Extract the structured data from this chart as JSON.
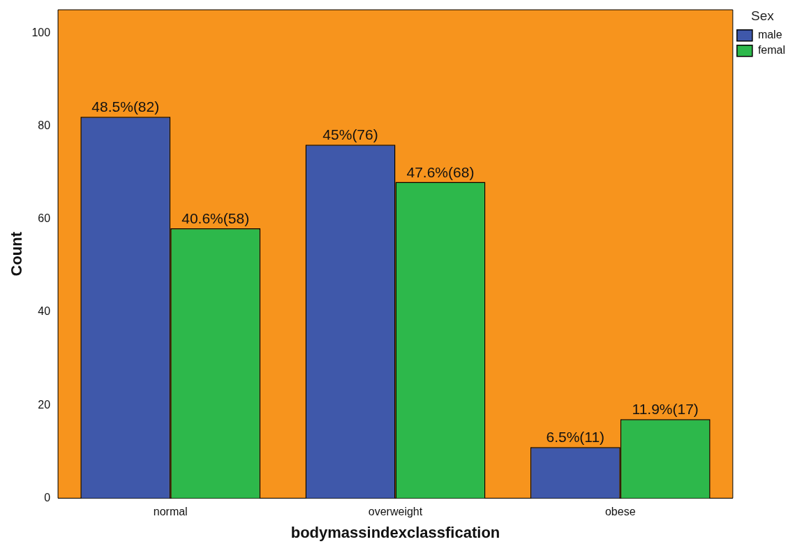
{
  "chart_data": {
    "type": "bar",
    "xlabel": "bodymassindexclassfication",
    "ylabel": "Count",
    "legend_title": "Sex",
    "categories": [
      "normal",
      "overweight",
      "obese"
    ],
    "series": [
      {
        "name": "male",
        "color": "#3f58aa",
        "values": [
          82,
          76,
          11
        ],
        "value_labels": [
          "48.5%(82)",
          "45%(76)",
          "6.5%(11)"
        ]
      },
      {
        "name": "femal",
        "color": "#2db84b",
        "values": [
          58,
          68,
          17
        ],
        "value_labels": [
          "40.6%(58)",
          "47.6%(68)",
          "11.9%(17)"
        ]
      }
    ],
    "ylim": [
      0,
      105
    ],
    "yticks": [
      0,
      20,
      40,
      60,
      80,
      100
    ],
    "grid": false,
    "legend": "top right"
  }
}
